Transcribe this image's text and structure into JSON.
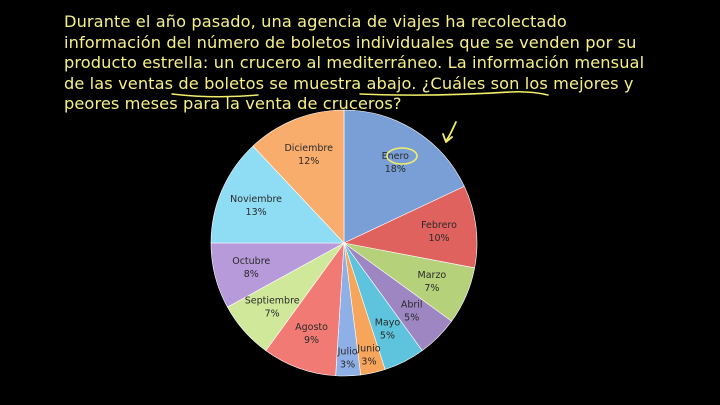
{
  "question": {
    "lines": [
      "Durante el año pasado, una agencia de viajes ha recolectado información del",
      "número de boletos individuales que se venden por su producto estrella: un",
      "crucero al mediterráneo. La información mensual de las ventas de boletos se",
      "muestra abajo. ¿Cuáles son los mejores y peores meses para la venta de",
      "cruceros?"
    ]
  },
  "colors": {
    "text": "#f7f08a",
    "annotation": "#f2ee6a",
    "background": "#000000"
  },
  "chart_data": {
    "type": "pie",
    "start_angle_deg": 0,
    "direction": "clockwise",
    "slices": [
      {
        "label": "Enero",
        "value": 18,
        "pct_label": "18%",
        "color": "#7a9fd6"
      },
      {
        "label": "Febrero",
        "value": 10,
        "pct_label": "10%",
        "color": "#e0625f"
      },
      {
        "label": "Marzo",
        "value": 7,
        "pct_label": "7%",
        "color": "#b5d17a"
      },
      {
        "label": "Abril",
        "value": 5,
        "pct_label": "5%",
        "color": "#9d86c2"
      },
      {
        "label": "Mayo",
        "value": 5,
        "pct_label": "5%",
        "color": "#5ec3dc"
      },
      {
        "label": "Junio",
        "value": 3,
        "pct_label": "3%",
        "color": "#f6a55a"
      },
      {
        "label": "Julio",
        "value": 3,
        "pct_label": "3%",
        "color": "#8fb0e6"
      },
      {
        "label": "Agosto",
        "value": 9,
        "pct_label": "9%",
        "color": "#f27a74"
      },
      {
        "label": "Septiembre",
        "value": 7,
        "pct_label": "7%",
        "color": "#cfe89a"
      },
      {
        "label": "Octubre",
        "value": 8,
        "pct_label": "8%",
        "color": "#b69ad9"
      },
      {
        "label": "Noviembre",
        "value": 13,
        "pct_label": "13%",
        "color": "#8fdcf5"
      },
      {
        "label": "Diciembre",
        "value": 12,
        "pct_label": "12%",
        "color": "#f9ad6c"
      }
    ],
    "annotations": [
      "Enero circled",
      "arrow pointing to Enero",
      "underline: Cuáles son",
      "underline: peores meses para la venta"
    ]
  }
}
